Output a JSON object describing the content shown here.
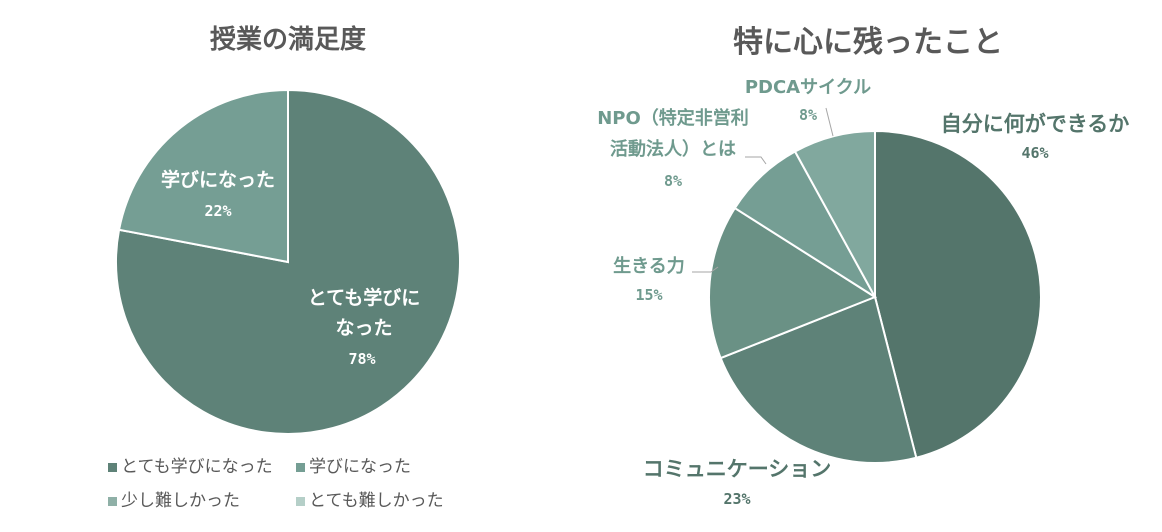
{
  "chart_data": [
    {
      "type": "pie",
      "title": "授業の満足度",
      "slices": [
        {
          "label": "とても学びに\nなった",
          "value": 78,
          "pct_label": "78%",
          "color": "#5e8278"
        },
        {
          "label": "学びになった",
          "value": 22,
          "pct_label": "22%",
          "color": "#759e94"
        },
        {
          "label": "少し難しかった",
          "value": 0,
          "pct_label": "",
          "color": "#8fb0a7"
        },
        {
          "label": "とても難しかった",
          "value": 0,
          "pct_label": "",
          "color": "#b5cfc8"
        }
      ],
      "legend": [
        "とても学びになった",
        "学びになった",
        "少し難しかった",
        "とても難しかった"
      ],
      "legend_position": "bottom"
    },
    {
      "type": "pie",
      "title": "特に心に残ったこと",
      "slices": [
        {
          "label": "自分に何ができるか",
          "value": 46,
          "pct_label": "46%",
          "color": "#54756b"
        },
        {
          "label": "コミュニケーション",
          "value": 23,
          "pct_label": "23%",
          "color": "#5e8278"
        },
        {
          "label": "生きる力",
          "value": 15,
          "pct_label": "15%",
          "color": "#6a9185"
        },
        {
          "label": "NPO（特定非営利\n活動法人）とは",
          "value": 8,
          "pct_label": "8%",
          "color": "#759e94"
        },
        {
          "label": "PDCAサイクル",
          "value": 8,
          "pct_label": "8%",
          "color": "#81a89e"
        }
      ]
    }
  ]
}
